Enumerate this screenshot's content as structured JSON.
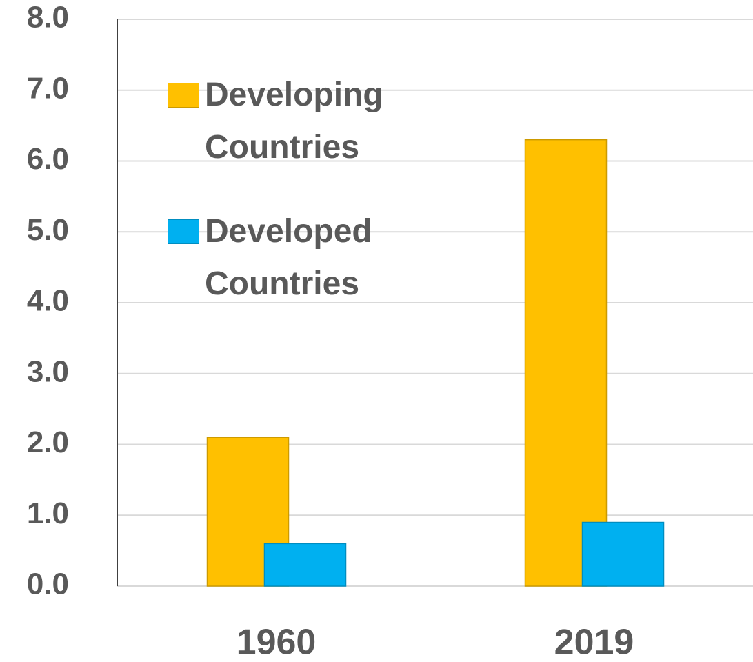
{
  "chart_data": {
    "type": "bar",
    "categories": [
      "1960",
      "2019"
    ],
    "series": [
      {
        "name": "Developing Countries",
        "color": "#FFC000",
        "values": [
          2.1,
          6.3
        ]
      },
      {
        "name": "Developed Countries",
        "color": "#00B0F0",
        "values": [
          0.6,
          0.9
        ]
      }
    ],
    "ylim": [
      0,
      8
    ],
    "yticks": [
      {
        "value": 0,
        "label": "0.0"
      },
      {
        "value": 1,
        "label": "1.0"
      },
      {
        "value": 2,
        "label": "2.0"
      },
      {
        "value": 3,
        "label": "3.0"
      },
      {
        "value": 4,
        "label": "4.0"
      },
      {
        "value": 5,
        "label": "5.0"
      },
      {
        "value": 6,
        "label": "6.0"
      },
      {
        "value": 7,
        "label": "7.0"
      },
      {
        "value": 8,
        "label": "8.0"
      }
    ],
    "grid": true,
    "legend": "top-left"
  }
}
